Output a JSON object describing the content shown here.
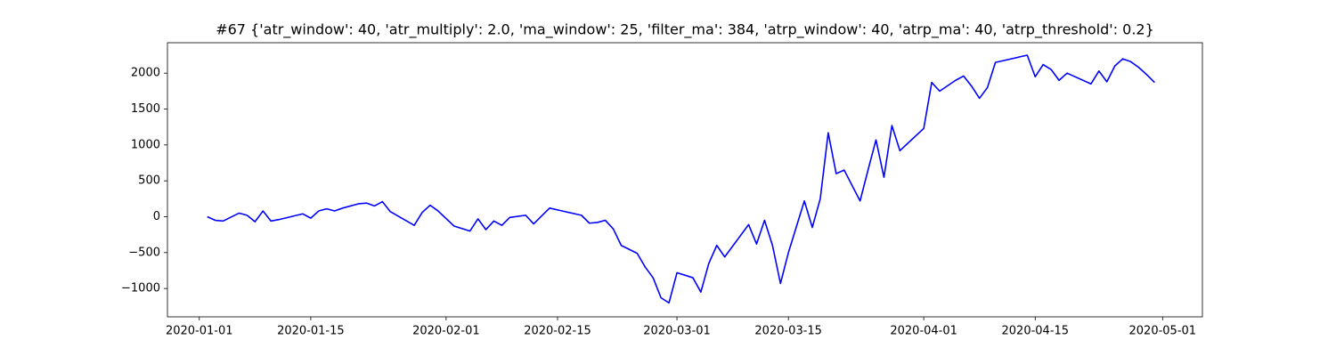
{
  "chart_data": {
    "type": "line",
    "title": "#67 {'atr_window': 40, 'atr_multiply': 2.0, 'ma_window': 25, 'filter_ma': 384, 'atrp_window': 40, 'atrp_ma': 40, 'atrp_threshold': 0.2}",
    "x": [
      "2020-01-02",
      "2020-01-03",
      "2020-01-04",
      "2020-01-06",
      "2020-01-07",
      "2020-01-08",
      "2020-01-09",
      "2020-01-10",
      "2020-01-11",
      "2020-01-14",
      "2020-01-15",
      "2020-01-16",
      "2020-01-17",
      "2020-01-18",
      "2020-01-19",
      "2020-01-21",
      "2020-01-22",
      "2020-01-23",
      "2020-01-24",
      "2020-01-25",
      "2020-01-28",
      "2020-01-29",
      "2020-01-30",
      "2020-01-31",
      "2020-02-02",
      "2020-02-04",
      "2020-02-05",
      "2020-02-06",
      "2020-02-07",
      "2020-02-08",
      "2020-02-09",
      "2020-02-11",
      "2020-02-12",
      "2020-02-14",
      "2020-02-16",
      "2020-02-18",
      "2020-02-19",
      "2020-02-20",
      "2020-02-21",
      "2020-02-22",
      "2020-02-23",
      "2020-02-25",
      "2020-02-26",
      "2020-02-27",
      "2020-02-28",
      "2020-02-29",
      "2020-03-01",
      "2020-03-03",
      "2020-03-04",
      "2020-03-05",
      "2020-03-06",
      "2020-03-07",
      "2020-03-10",
      "2020-03-11",
      "2020-03-12",
      "2020-03-13",
      "2020-03-14",
      "2020-03-15",
      "2020-03-17",
      "2020-03-18",
      "2020-03-19",
      "2020-03-20",
      "2020-03-21",
      "2020-03-22",
      "2020-03-24",
      "2020-03-25",
      "2020-03-26",
      "2020-03-27",
      "2020-03-28",
      "2020-03-29",
      "2020-04-01",
      "2020-04-02",
      "2020-04-03",
      "2020-04-05",
      "2020-04-06",
      "2020-04-07",
      "2020-04-08",
      "2020-04-09",
      "2020-04-10",
      "2020-04-14",
      "2020-04-15",
      "2020-04-16",
      "2020-04-17",
      "2020-04-18",
      "2020-04-19",
      "2020-04-22",
      "2020-04-23",
      "2020-04-24",
      "2020-04-25",
      "2020-04-26",
      "2020-04-27",
      "2020-04-28",
      "2020-04-29",
      "2020-04-30"
    ],
    "series": [
      {
        "color": "#0000ff",
        "values": [
          0,
          -50,
          -60,
          50,
          20,
          -70,
          80,
          -60,
          -40,
          40,
          -20,
          80,
          110,
          80,
          120,
          180,
          190,
          150,
          210,
          70,
          -120,
          60,
          160,
          80,
          -130,
          -200,
          -30,
          -180,
          -60,
          -120,
          -10,
          20,
          -100,
          120,
          70,
          20,
          -90,
          -80,
          -50,
          -170,
          -400,
          -510,
          -700,
          -850,
          -1130,
          -1200,
          -780,
          -850,
          -1050,
          -650,
          -400,
          -560,
          -110,
          -380,
          -50,
          -400,
          -930,
          -500,
          220,
          -150,
          250,
          1170,
          600,
          650,
          220,
          650,
          1070,
          550,
          1270,
          920,
          1230,
          1870,
          1750,
          1900,
          1960,
          1820,
          1650,
          1800,
          2150,
          2250,
          1950,
          2120,
          2050,
          1900,
          2000,
          1850,
          2030,
          1880,
          2100,
          2200,
          2160,
          2080,
          1980,
          1870
        ]
      }
    ],
    "xlim": [
      "2019-12-28",
      "2020-05-06"
    ],
    "xticks": [
      "2020-01-01",
      "2020-01-15",
      "2020-02-01",
      "2020-02-15",
      "2020-03-01",
      "2020-03-15",
      "2020-04-01",
      "2020-04-15",
      "2020-05-01"
    ],
    "ylim": [
      -1395,
      2424
    ],
    "yticks": [
      {
        "value": -1000,
        "label": "−1000"
      },
      {
        "value": -500,
        "label": "−500"
      },
      0,
      500,
      1000,
      1500,
      2000
    ],
    "grid": false
  }
}
